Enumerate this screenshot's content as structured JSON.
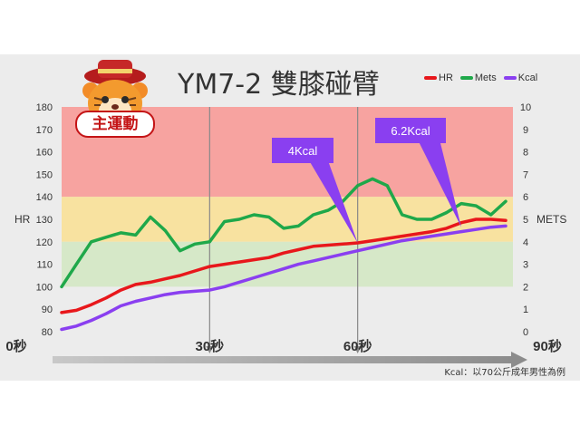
{
  "title": "YM7-2  雙膝碰臂",
  "badge": "主運動",
  "footnote": "Kcal：以70公斤成年男性為例",
  "colors": {
    "hr": "#e8171b",
    "mets": "#1fa84a",
    "kcal": "#8a3ff0",
    "zone_red": "#f7a3a0",
    "zone_yellow": "#f8e2a0",
    "zone_green": "#d6e8c8",
    "callout": "#8a3ff0"
  },
  "chart_data": {
    "type": "line",
    "title": "YM7-2  雙膝碰臂",
    "xlabel": "",
    "ylabel": "HR",
    "y2label": "METS",
    "ylim": [
      80,
      180
    ],
    "y2lim": [
      0,
      10
    ],
    "yticks": [
      80,
      90,
      100,
      110,
      120,
      130,
      140,
      150,
      160,
      170,
      180
    ],
    "y2ticks": [
      0,
      1,
      2,
      3,
      4,
      5,
      6,
      7,
      8,
      9,
      10
    ],
    "xlim": [
      0,
      90
    ],
    "x_labels": [
      {
        "x": 0,
        "label": "0秒"
      },
      {
        "x": 30,
        "label": "30秒"
      },
      {
        "x": 60,
        "label": "60秒"
      },
      {
        "x": 90,
        "label": "90秒"
      }
    ],
    "zones": [
      {
        "from": 140,
        "to": 180,
        "color": "red"
      },
      {
        "from": 120,
        "to": 140,
        "color": "yellow"
      },
      {
        "from": 100,
        "to": 120,
        "color": "green"
      }
    ],
    "legend": [
      "HR",
      "Mets",
      "Kcal"
    ],
    "series": [
      {
        "name": "HR",
        "axis": "left",
        "x": [
          0,
          3,
          6,
          9,
          12,
          15,
          18,
          21,
          24,
          27,
          30,
          33,
          36,
          39,
          42,
          45,
          48,
          51,
          54,
          57,
          60,
          63,
          66,
          69,
          72,
          75,
          78,
          81,
          84,
          87,
          90
        ],
        "y": [
          88.5,
          89.5,
          92,
          95,
          98.5,
          101,
          102,
          103.5,
          105,
          107,
          109,
          110,
          111,
          112,
          113,
          115,
          116.5,
          118,
          118.5,
          119,
          119.5,
          120.5,
          121.5,
          122.5,
          123.5,
          124.5,
          126,
          128.5,
          130,
          130,
          129.5
        ]
      },
      {
        "name": "Mets",
        "axis": "right",
        "x": [
          0,
          3,
          6,
          9,
          12,
          15,
          18,
          21,
          24,
          27,
          30,
          33,
          36,
          39,
          42,
          45,
          48,
          51,
          54,
          57,
          60,
          63,
          66,
          69,
          72,
          75,
          78,
          81,
          84,
          87,
          90
        ],
        "y": [
          2.0,
          3.0,
          4.0,
          4.2,
          4.4,
          4.3,
          5.1,
          4.5,
          3.6,
          3.9,
          4.0,
          4.9,
          5.0,
          5.2,
          5.1,
          4.6,
          4.7,
          5.2,
          5.4,
          5.8,
          6.5,
          6.8,
          6.5,
          5.2,
          5.0,
          5.0,
          5.3,
          5.7,
          5.6,
          5.2,
          5.8
        ]
      },
      {
        "name": "Kcal",
        "axis": "left",
        "x": [
          0,
          3,
          6,
          9,
          12,
          15,
          18,
          21,
          24,
          27,
          30,
          33,
          36,
          39,
          42,
          45,
          48,
          51,
          54,
          57,
          60,
          63,
          66,
          69,
          72,
          75,
          78,
          81,
          84,
          87,
          90
        ],
        "y": [
          81,
          82.5,
          85,
          88,
          91.5,
          93.5,
          95,
          96.5,
          97.5,
          98,
          98.5,
          100,
          102,
          104,
          106,
          108,
          110,
          111.5,
          113,
          114.5,
          116,
          117.5,
          119,
          120.5,
          121.5,
          122.5,
          123.5,
          124.5,
          125.5,
          126.5,
          127
        ]
      }
    ],
    "markers": [
      30,
      60
    ],
    "annotations": [
      {
        "label": "4Kcal",
        "point_x": 60,
        "point_y": 119.5
      },
      {
        "label": "6.2Kcal",
        "point_x": 81,
        "point_y": 126.5
      }
    ]
  }
}
